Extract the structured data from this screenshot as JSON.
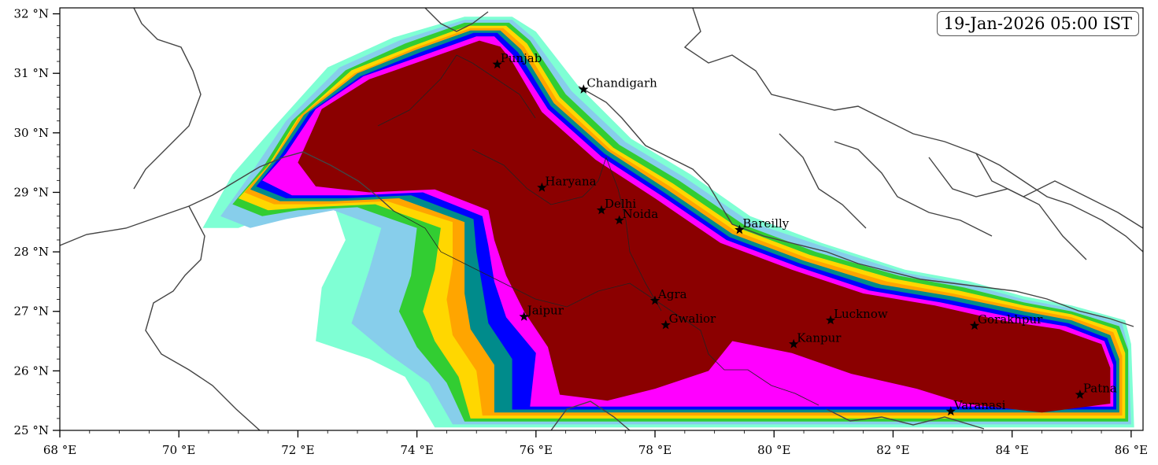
{
  "timestamp": "19-Jan-2026 05:00 IST",
  "axes": {
    "x_ticks": [
      {
        "value": 68,
        "label": "68 °E"
      },
      {
        "value": 70,
        "label": "70 °E"
      },
      {
        "value": 72,
        "label": "72 °E"
      },
      {
        "value": 74,
        "label": "74 °E"
      },
      {
        "value": 76,
        "label": "76 °E"
      },
      {
        "value": 78,
        "label": "78 °E"
      },
      {
        "value": 80,
        "label": "80 °E"
      },
      {
        "value": 82,
        "label": "82 °E"
      },
      {
        "value": 84,
        "label": "84 °E"
      },
      {
        "value": 86,
        "label": "86 °E"
      }
    ],
    "y_ticks": [
      {
        "value": 25,
        "label": "25 °N"
      },
      {
        "value": 26,
        "label": "26 °N"
      },
      {
        "value": 27,
        "label": "27 °N"
      },
      {
        "value": 28,
        "label": "28 °N"
      },
      {
        "value": 29,
        "label": "29 °N"
      },
      {
        "value": 30,
        "label": "30 °N"
      },
      {
        "value": 31,
        "label": "31 °N"
      },
      {
        "value": 32,
        "label": "32 °N"
      }
    ],
    "lon_range": [
      68,
      86.2
    ],
    "lat_range": [
      25,
      32.1
    ]
  },
  "cities": [
    {
      "name": "Punjab",
      "lon": 75.35,
      "lat": 31.15
    },
    {
      "name": "Chandigarh",
      "lon": 76.8,
      "lat": 30.73
    },
    {
      "name": "Haryana",
      "lon": 76.1,
      "lat": 29.08
    },
    {
      "name": "Delhi",
      "lon": 77.1,
      "lat": 28.7
    },
    {
      "name": "Noida",
      "lon": 77.4,
      "lat": 28.53
    },
    {
      "name": "Bareilly",
      "lon": 79.42,
      "lat": 28.37
    },
    {
      "name": "Agra",
      "lon": 78.0,
      "lat": 27.18
    },
    {
      "name": "Jaipur",
      "lon": 75.8,
      "lat": 26.91
    },
    {
      "name": "Gwalior",
      "lon": 78.18,
      "lat": 26.77
    },
    {
      "name": "Lucknow",
      "lon": 80.95,
      "lat": 26.85
    },
    {
      "name": "Kanpur",
      "lon": 80.33,
      "lat": 26.45
    },
    {
      "name": "Gorakhpur",
      "lon": 83.37,
      "lat": 26.76
    },
    {
      "name": "Varanasi",
      "lon": 82.97,
      "lat": 25.32
    },
    {
      "name": "Patna",
      "lon": 85.14,
      "lat": 25.6
    }
  ],
  "fog_levels": [
    {
      "color": "#7fffd4",
      "lonlat": [
        [
          70.4,
          28.4
        ],
        [
          70.9,
          29.3
        ],
        [
          71.6,
          30.1
        ],
        [
          72.5,
          31.1
        ],
        [
          73.6,
          31.6
        ],
        [
          74.8,
          31.95
        ],
        [
          75.6,
          31.95
        ],
        [
          76.0,
          31.7
        ],
        [
          76.7,
          30.8
        ],
        [
          77.6,
          29.9
        ],
        [
          78.6,
          29.3
        ],
        [
          79.6,
          28.6
        ],
        [
          80.8,
          28.15
        ],
        [
          82.2,
          27.7
        ],
        [
          83.3,
          27.5
        ],
        [
          84.2,
          27.25
        ],
        [
          85.0,
          27.1
        ],
        [
          85.9,
          26.85
        ],
        [
          86.0,
          26.45
        ],
        [
          86.05,
          25.05
        ],
        [
          74.3,
          25.05
        ],
        [
          73.8,
          25.9
        ],
        [
          73.2,
          26.2
        ],
        [
          72.3,
          26.5
        ],
        [
          72.4,
          27.4
        ],
        [
          72.8,
          28.2
        ],
        [
          72.6,
          28.8
        ],
        [
          71.8,
          28.7
        ],
        [
          71.0,
          28.4
        ]
      ]
    },
    {
      "color": "#87ceeb",
      "lonlat": [
        [
          70.7,
          28.6
        ],
        [
          71.2,
          29.3
        ],
        [
          71.8,
          30.2
        ],
        [
          72.7,
          31.1
        ],
        [
          73.7,
          31.55
        ],
        [
          74.8,
          31.9
        ],
        [
          75.6,
          31.9
        ],
        [
          75.95,
          31.6
        ],
        [
          76.6,
          30.7
        ],
        [
          77.5,
          29.85
        ],
        [
          78.5,
          29.25
        ],
        [
          79.6,
          28.5
        ],
        [
          80.8,
          28.1
        ],
        [
          82.2,
          27.65
        ],
        [
          83.3,
          27.45
        ],
        [
          84.2,
          27.2
        ],
        [
          85.0,
          27.05
        ],
        [
          85.85,
          26.8
        ],
        [
          85.95,
          26.4
        ],
        [
          86.0,
          25.1
        ],
        [
          74.6,
          25.1
        ],
        [
          74.2,
          25.8
        ],
        [
          73.5,
          26.3
        ],
        [
          72.9,
          26.8
        ],
        [
          73.2,
          27.7
        ],
        [
          73.4,
          28.4
        ],
        [
          72.6,
          28.7
        ],
        [
          71.8,
          28.55
        ],
        [
          71.2,
          28.4
        ]
      ]
    },
    {
      "color": "#32cd32",
      "lonlat": [
        [
          70.9,
          28.8
        ],
        [
          71.4,
          29.4
        ],
        [
          71.9,
          30.2
        ],
        [
          72.8,
          31.05
        ],
        [
          73.8,
          31.5
        ],
        [
          74.8,
          31.85
        ],
        [
          75.55,
          31.85
        ],
        [
          75.9,
          31.55
        ],
        [
          76.5,
          30.65
        ],
        [
          77.4,
          29.8
        ],
        [
          78.4,
          29.2
        ],
        [
          79.5,
          28.45
        ],
        [
          80.7,
          28.0
        ],
        [
          82.1,
          27.6
        ],
        [
          83.2,
          27.4
        ],
        [
          84.2,
          27.15
        ],
        [
          85.0,
          27.0
        ],
        [
          85.8,
          26.75
        ],
        [
          85.95,
          26.35
        ],
        [
          85.95,
          25.15
        ],
        [
          74.8,
          25.15
        ],
        [
          74.5,
          25.8
        ],
        [
          74.0,
          26.4
        ],
        [
          73.7,
          27.0
        ],
        [
          73.9,
          27.6
        ],
        [
          74.0,
          28.4
        ],
        [
          73.0,
          28.75
        ],
        [
          72.0,
          28.7
        ],
        [
          71.4,
          28.6
        ]
      ]
    },
    {
      "color": "#ffd700",
      "lonlat": [
        [
          71.0,
          28.9
        ],
        [
          71.5,
          29.45
        ],
        [
          72.0,
          30.25
        ],
        [
          72.9,
          31.05
        ],
        [
          73.9,
          31.45
        ],
        [
          74.85,
          31.8
        ],
        [
          75.5,
          31.8
        ],
        [
          75.85,
          31.5
        ],
        [
          76.4,
          30.6
        ],
        [
          77.3,
          29.75
        ],
        [
          78.3,
          29.15
        ],
        [
          79.4,
          28.4
        ],
        [
          80.6,
          27.95
        ],
        [
          82.0,
          27.55
        ],
        [
          83.1,
          27.35
        ],
        [
          84.2,
          27.1
        ],
        [
          85.0,
          26.95
        ],
        [
          85.75,
          26.7
        ],
        [
          85.9,
          26.3
        ],
        [
          85.9,
          25.2
        ],
        [
          74.9,
          25.2
        ],
        [
          74.7,
          25.9
        ],
        [
          74.3,
          26.5
        ],
        [
          74.1,
          27.0
        ],
        [
          74.3,
          27.7
        ],
        [
          74.4,
          28.4
        ],
        [
          73.3,
          28.8
        ],
        [
          72.2,
          28.75
        ],
        [
          71.5,
          28.7
        ]
      ]
    },
    {
      "color": "#ffa500",
      "lonlat": [
        [
          71.1,
          29.0
        ],
        [
          71.55,
          29.5
        ],
        [
          72.05,
          30.3
        ],
        [
          72.95,
          31.0
        ],
        [
          73.95,
          31.42
        ],
        [
          74.9,
          31.76
        ],
        [
          75.45,
          31.76
        ],
        [
          75.8,
          31.45
        ],
        [
          76.35,
          30.55
        ],
        [
          77.25,
          29.72
        ],
        [
          78.25,
          29.1
        ],
        [
          79.35,
          28.35
        ],
        [
          80.55,
          27.9
        ],
        [
          81.9,
          27.5
        ],
        [
          83.0,
          27.3
        ],
        [
          84.2,
          27.05
        ],
        [
          85.0,
          26.9
        ],
        [
          85.7,
          26.65
        ],
        [
          85.85,
          26.25
        ],
        [
          85.85,
          25.25
        ],
        [
          75.1,
          25.25
        ],
        [
          75.0,
          26.0
        ],
        [
          74.6,
          26.6
        ],
        [
          74.5,
          27.2
        ],
        [
          74.6,
          27.8
        ],
        [
          74.6,
          28.5
        ],
        [
          73.5,
          28.85
        ],
        [
          72.4,
          28.8
        ],
        [
          71.6,
          28.8
        ]
      ]
    },
    {
      "color": "#008b8b",
      "lonlat": [
        [
          71.2,
          29.05
        ],
        [
          71.6,
          29.55
        ],
        [
          72.1,
          30.3
        ],
        [
          73.0,
          31.0
        ],
        [
          74.0,
          31.4
        ],
        [
          74.9,
          31.72
        ],
        [
          75.4,
          31.72
        ],
        [
          75.75,
          31.4
        ],
        [
          76.3,
          30.5
        ],
        [
          77.2,
          29.7
        ],
        [
          78.2,
          29.05
        ],
        [
          79.3,
          28.3
        ],
        [
          80.5,
          27.85
        ],
        [
          81.8,
          27.45
        ],
        [
          83.0,
          27.25
        ],
        [
          84.2,
          27.0
        ],
        [
          85.0,
          26.85
        ],
        [
          85.65,
          26.6
        ],
        [
          85.8,
          26.2
        ],
        [
          85.8,
          25.3
        ],
        [
          75.3,
          25.3
        ],
        [
          75.3,
          26.1
        ],
        [
          74.9,
          26.7
        ],
        [
          74.8,
          27.3
        ],
        [
          74.8,
          27.9
        ],
        [
          74.8,
          28.5
        ],
        [
          73.7,
          28.9
        ],
        [
          72.6,
          28.85
        ],
        [
          71.7,
          28.85
        ]
      ]
    },
    {
      "color": "#0000ff",
      "lonlat": [
        [
          71.3,
          29.1
        ],
        [
          71.7,
          29.6
        ],
        [
          72.2,
          30.35
        ],
        [
          73.05,
          30.95
        ],
        [
          74.05,
          31.35
        ],
        [
          74.95,
          31.68
        ],
        [
          75.35,
          31.68
        ],
        [
          75.7,
          31.35
        ],
        [
          76.25,
          30.45
        ],
        [
          77.15,
          29.65
        ],
        [
          78.15,
          29.0
        ],
        [
          79.25,
          28.25
        ],
        [
          80.45,
          27.8
        ],
        [
          81.7,
          27.4
        ],
        [
          82.9,
          27.2
        ],
        [
          84.1,
          26.95
        ],
        [
          84.95,
          26.8
        ],
        [
          85.6,
          26.55
        ],
        [
          85.75,
          26.15
        ],
        [
          85.75,
          25.35
        ],
        [
          75.6,
          25.35
        ],
        [
          75.6,
          26.2
        ],
        [
          75.2,
          26.8
        ],
        [
          75.1,
          27.4
        ],
        [
          75.0,
          28.0
        ],
        [
          74.95,
          28.55
        ],
        [
          73.9,
          28.95
        ],
        [
          72.8,
          28.9
        ],
        [
          71.8,
          28.9
        ]
      ]
    },
    {
      "color": "#ff00ff",
      "lonlat": [
        [
          71.4,
          29.2
        ],
        [
          71.8,
          29.65
        ],
        [
          72.3,
          30.4
        ],
        [
          73.1,
          30.95
        ],
        [
          74.1,
          31.3
        ],
        [
          75.0,
          31.62
        ],
        [
          75.3,
          31.62
        ],
        [
          75.62,
          31.3
        ],
        [
          76.2,
          30.4
        ],
        [
          77.1,
          29.6
        ],
        [
          78.1,
          28.95
        ],
        [
          79.2,
          28.2
        ],
        [
          80.4,
          27.75
        ],
        [
          81.6,
          27.35
        ],
        [
          82.8,
          27.15
        ],
        [
          84.0,
          26.9
        ],
        [
          84.9,
          26.75
        ],
        [
          85.55,
          26.5
        ],
        [
          85.7,
          26.1
        ],
        [
          85.7,
          25.4
        ],
        [
          75.9,
          25.4
        ],
        [
          76.0,
          26.3
        ],
        [
          75.5,
          26.9
        ],
        [
          75.3,
          27.5
        ],
        [
          75.2,
          28.1
        ],
        [
          75.1,
          28.6
        ],
        [
          74.1,
          29.0
        ],
        [
          73.0,
          28.95
        ],
        [
          71.9,
          28.95
        ]
      ]
    },
    {
      "color": "#8b0000",
      "lonlat": [
        [
          72.0,
          29.5
        ],
        [
          72.4,
          30.4
        ],
        [
          73.2,
          30.9
        ],
        [
          74.2,
          31.25
        ],
        [
          75.05,
          31.55
        ],
        [
          75.4,
          31.45
        ],
        [
          75.6,
          31.2
        ],
        [
          76.1,
          30.35
        ],
        [
          77.0,
          29.55
        ],
        [
          78.0,
          28.9
        ],
        [
          79.1,
          28.15
        ],
        [
          80.3,
          27.7
        ],
        [
          81.5,
          27.3
        ],
        [
          82.7,
          27.1
        ],
        [
          83.8,
          26.85
        ],
        [
          84.8,
          26.7
        ],
        [
          85.5,
          26.45
        ],
        [
          85.65,
          26.05
        ],
        [
          85.65,
          25.45
        ],
        [
          84.5,
          25.3
        ],
        [
          83.2,
          25.45
        ],
        [
          82.4,
          25.7
        ],
        [
          81.3,
          25.95
        ],
        [
          80.3,
          26.3
        ],
        [
          79.3,
          26.5
        ],
        [
          78.9,
          26.0
        ],
        [
          78.0,
          25.7
        ],
        [
          77.2,
          25.5
        ],
        [
          76.4,
          25.6
        ],
        [
          76.2,
          26.4
        ],
        [
          75.8,
          27.0
        ],
        [
          75.5,
          27.6
        ],
        [
          75.3,
          28.2
        ],
        [
          75.2,
          28.7
        ],
        [
          74.3,
          29.05
        ],
        [
          73.2,
          29.0
        ],
        [
          72.3,
          29.1
        ]
      ]
    }
  ]
}
